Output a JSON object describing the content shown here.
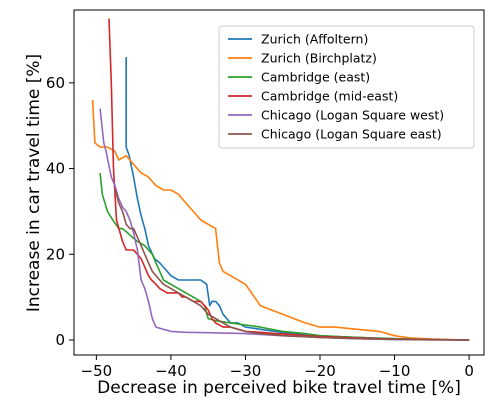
{
  "chart_data": {
    "type": "line",
    "title": "",
    "xlabel": "Decrease in perceived bike travel time [%]",
    "ylabel": "Increase in car travel time [%]",
    "xlim": [
      -53,
      2
    ],
    "ylim": [
      -3.5,
      77
    ],
    "xticks": [
      -50,
      -40,
      -30,
      -20,
      -10,
      0
    ],
    "xtick_labels": [
      "−50",
      "−40",
      "−30",
      "−20",
      "−10",
      "0"
    ],
    "yticks": [
      0,
      20,
      40,
      60
    ],
    "ytick_labels": [
      "0",
      "20",
      "40",
      "60"
    ],
    "grid": false,
    "legend_position": "top-right",
    "series": [
      {
        "name": "Zurich (Affoltern)",
        "color": "#1f77b4",
        "x": [
          -46,
          -46,
          -45.6,
          -45,
          -44.5,
          -44,
          -43.5,
          -43,
          -42.2,
          -41.5,
          -41,
          -40,
          -39,
          -38.2,
          -37,
          -36,
          -35.2,
          -34.8,
          -34.5,
          -34,
          -33.5,
          -33,
          -32.5,
          -32,
          -31,
          -30,
          -28,
          -26,
          -24,
          -22,
          -20,
          -18,
          -15,
          -10,
          -5,
          0
        ],
        "y": [
          66,
          45,
          43,
          38,
          33,
          29,
          26,
          22,
          19,
          18,
          17,
          15,
          14,
          14,
          14,
          14,
          13,
          8,
          9,
          9,
          8,
          6,
          5,
          4,
          4,
          3,
          2.5,
          2,
          1.5,
          1.2,
          1,
          0.8,
          0.6,
          0.3,
          0.1,
          0
        ]
      },
      {
        "name": "Zurich (Birchplatz)",
        "color": "#ff7f0e",
        "x": [
          -50.5,
          -50.2,
          -49.5,
          -48.5,
          -47.5,
          -47,
          -46,
          -45,
          -44,
          -43,
          -42,
          -41,
          -40,
          -39,
          -38.5,
          -38,
          -37,
          -36,
          -35,
          -34,
          -33.5,
          -33,
          -32,
          -30,
          -28,
          -25,
          -22,
          -20,
          -18,
          -15,
          -12,
          -10,
          -8,
          -5,
          0
        ],
        "y": [
          56,
          46,
          45,
          45,
          44,
          42,
          43,
          41,
          39,
          38,
          36,
          35,
          35,
          34,
          33,
          32,
          30,
          28,
          27,
          26,
          18,
          16,
          15,
          13,
          8,
          6,
          4,
          3,
          3,
          2.5,
          2,
          1,
          0.5,
          0.2,
          0
        ]
      },
      {
        "name": "Cambridge (east)",
        "color": "#2ca02c",
        "x": [
          -49.5,
          -49.2,
          -48.5,
          -47.8,
          -47,
          -46.5,
          -45.8,
          -45.2,
          -44.5,
          -43.5,
          -42.5,
          -42,
          -41,
          -40,
          -39,
          -38,
          -37,
          -36,
          -35.5,
          -35,
          -34,
          -32,
          -30,
          -28,
          -25,
          -22,
          -20,
          -15,
          -10,
          -5,
          0
        ],
        "y": [
          39,
          34,
          30,
          28,
          26,
          26,
          25,
          24,
          23,
          22,
          20,
          18,
          14,
          13,
          12,
          11,
          10,
          9,
          8,
          5,
          4.5,
          4,
          3.5,
          3,
          2,
          1.5,
          1,
          0.6,
          0.3,
          0.1,
          0
        ]
      },
      {
        "name": "Cambridge (mid-east)",
        "color": "#d62728",
        "x": [
          -48.3,
          -48,
          -47.7,
          -47.3,
          -46.5,
          -46,
          -45,
          -44.5,
          -44,
          -43.5,
          -43,
          -42.6,
          -42,
          -41.5,
          -40.5,
          -40,
          -39,
          -38.5,
          -38,
          -37,
          -36,
          -35.5,
          -35,
          -34.5,
          -34,
          -33,
          -32,
          -31,
          -30,
          -28,
          -26,
          -24,
          -22,
          -20,
          -15,
          -10,
          -5,
          0
        ],
        "y": [
          75,
          60,
          40,
          28,
          23,
          21,
          21,
          20,
          19,
          17,
          15,
          14,
          13,
          12,
          11,
          11,
          11,
          10,
          10,
          9,
          9,
          8,
          7,
          5,
          4,
          3,
          3,
          2.5,
          2,
          1.8,
          1.5,
          1.3,
          1,
          0.8,
          0.5,
          0.2,
          0.1,
          0
        ]
      },
      {
        "name": "Chicago (Logan Square west)",
        "color": "#9467bd",
        "x": [
          -49.5,
          -49,
          -48.7,
          -48,
          -47.5,
          -47,
          -46.5,
          -46,
          -45.5,
          -45,
          -44.5,
          -44,
          -43.5,
          -43,
          -42.5,
          -42,
          -41,
          -40,
          -38,
          -35,
          -30,
          -25,
          -20,
          -15,
          -10,
          -5,
          0
        ],
        "y": [
          54,
          46,
          44,
          38,
          36,
          33,
          31,
          30,
          28,
          25,
          21,
          14,
          12,
          9,
          5,
          3,
          2.5,
          2,
          1.8,
          1.7,
          1.5,
          1,
          0.6,
          0.3,
          0.15,
          0.05,
          0
        ]
      },
      {
        "name": "Chicago (Logan Square east)",
        "color": "#8c564b",
        "x": [
          -47.5,
          -47.3,
          -47,
          -46.5,
          -46,
          -45.5,
          -45,
          -44.5,
          -44,
          -43.5,
          -43,
          -42.5,
          -42,
          -41.5,
          -41,
          -40,
          -39,
          -38,
          -37,
          -36,
          -35,
          -34,
          -33,
          -32,
          -30,
          -28,
          -25,
          -20,
          -15,
          -10,
          -5,
          0
        ],
        "y": [
          35,
          34,
          32,
          30,
          27,
          26,
          26,
          24,
          22,
          20,
          18,
          16,
          15,
          14,
          13,
          12,
          11,
          10,
          9,
          8,
          6,
          5,
          4,
          3,
          2,
          1.5,
          1,
          0.6,
          0.3,
          0.15,
          0.05,
          0
        ]
      }
    ]
  }
}
